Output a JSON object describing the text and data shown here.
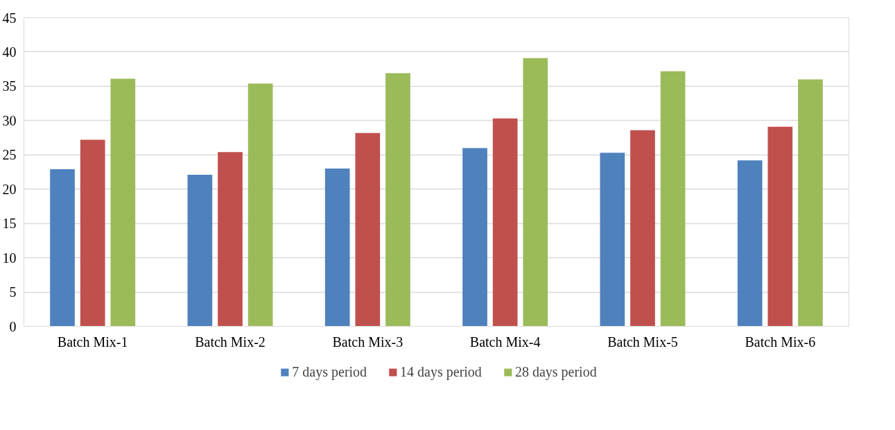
{
  "chart_data": {
    "type": "bar",
    "categories": [
      "Batch Mix-1",
      "Batch Mix-2",
      "Batch Mix-3",
      "Batch Mix-4",
      "Batch Mix-5",
      "Batch Mix-6"
    ],
    "series": [
      {
        "name": "7 days period",
        "color": "#4f81bd",
        "values": [
          22.9,
          22.1,
          23.0,
          26.0,
          25.3,
          24.2
        ]
      },
      {
        "name": "14 days period",
        "color": "#c0504d",
        "values": [
          27.2,
          25.4,
          28.2,
          30.3,
          28.6,
          29.1
        ]
      },
      {
        "name": "28 days period",
        "color": "#9bbb59",
        "values": [
          36.1,
          35.4,
          36.9,
          39.1,
          37.2,
          36.0
        ]
      }
    ],
    "ylim": [
      0,
      45
    ],
    "yticks": [
      0,
      5,
      10,
      15,
      20,
      25,
      30,
      35,
      40,
      45
    ],
    "grid": "y",
    "legend": "bottom"
  }
}
